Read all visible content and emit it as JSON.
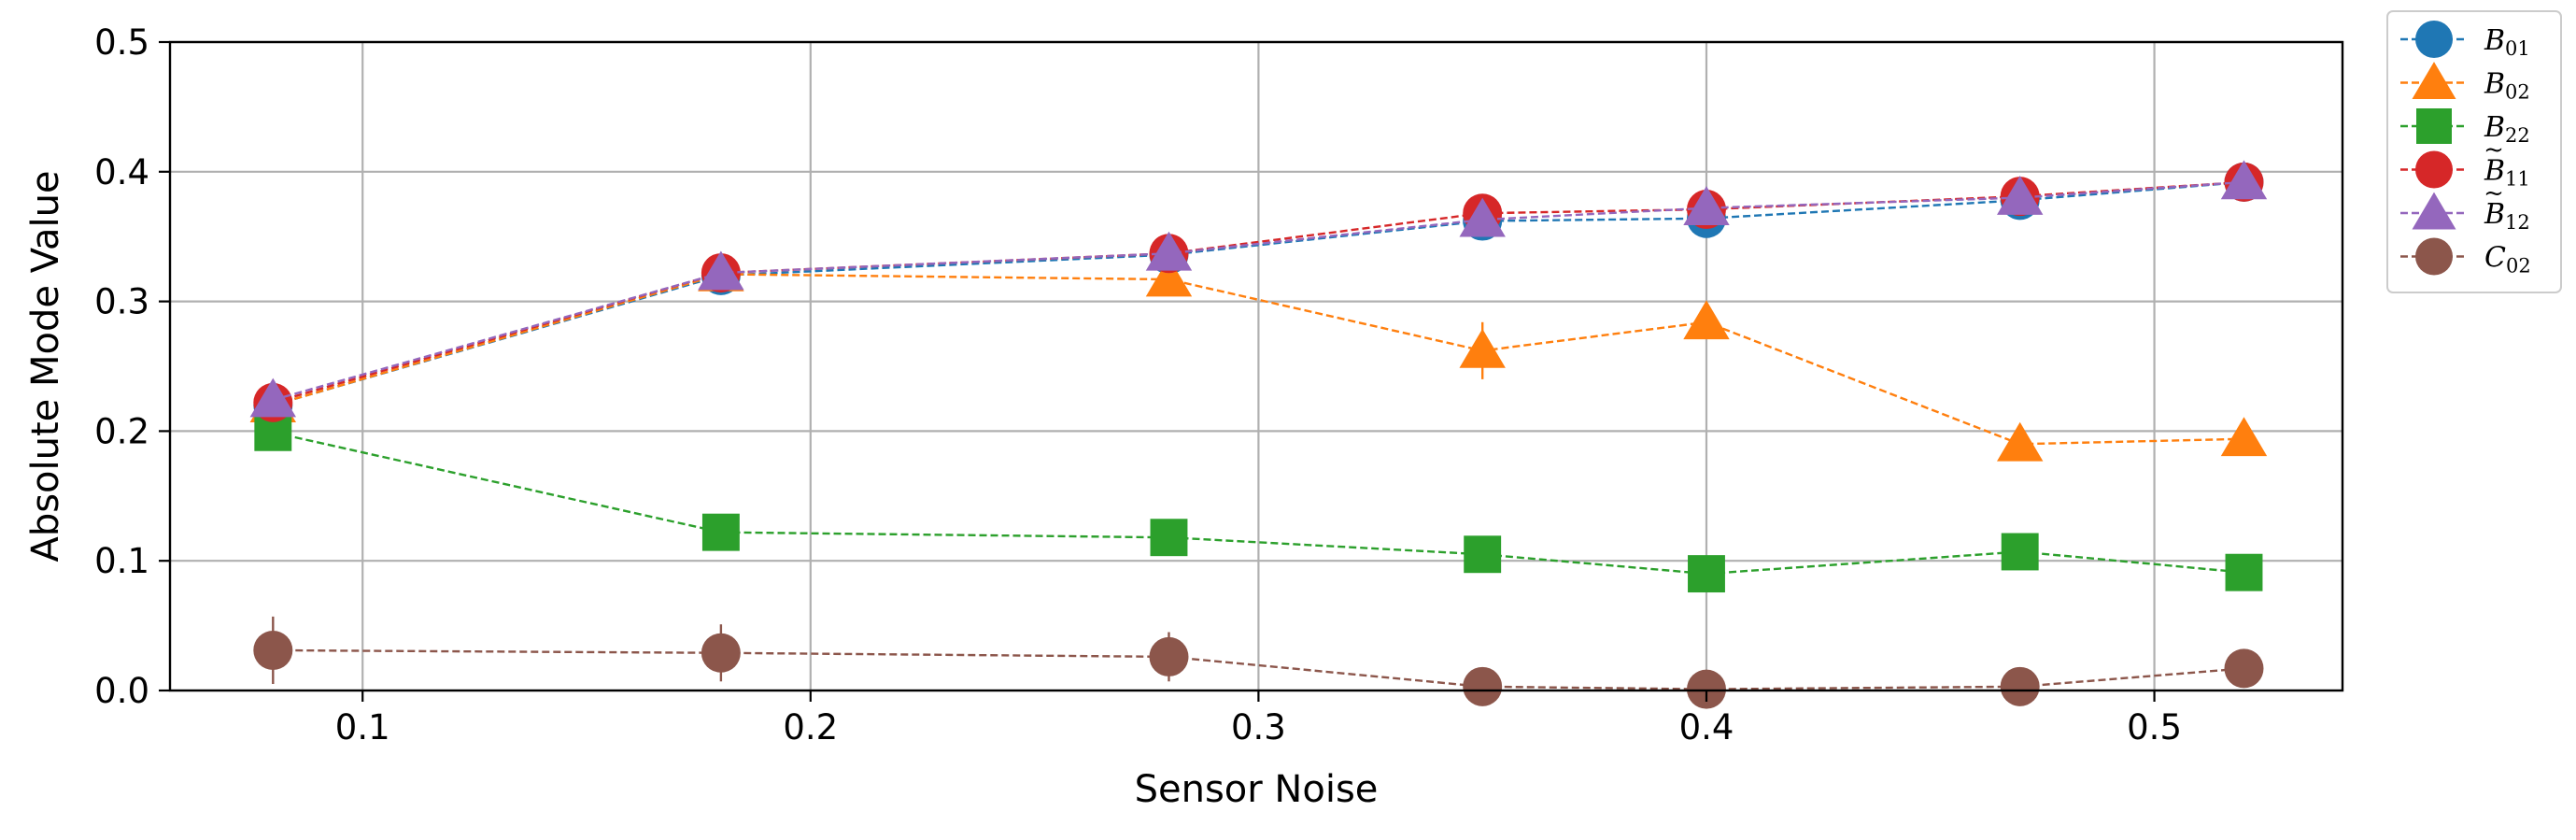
{
  "chart_data": {
    "type": "line",
    "xlabel": "Sensor Noise",
    "ylabel": "Absolute Mode Value",
    "xlim": [
      0.057,
      0.542
    ],
    "ylim": [
      0.0,
      0.5
    ],
    "xticks": [
      0.1,
      0.2,
      0.3,
      0.4,
      0.5
    ],
    "xtick_labels": [
      "0.1",
      "0.2",
      "0.3",
      "0.4",
      "0.5"
    ],
    "yticks": [
      0.0,
      0.1,
      0.2,
      0.3,
      0.4,
      0.5
    ],
    "ytick_labels": [
      "0.0",
      "0.1",
      "0.2",
      "0.3",
      "0.4",
      "0.5"
    ],
    "grid": true,
    "legend_position": "outside-right-top",
    "x": [
      0.08,
      0.18,
      0.28,
      0.35,
      0.4,
      0.47,
      0.52
    ],
    "series": [
      {
        "name": "B01",
        "label_base": "B",
        "label_tilde": false,
        "label_sub": "01",
        "color": "#1f77b4",
        "marker": "circle",
        "values": [
          0.22,
          0.32,
          0.336,
          0.362,
          0.364,
          0.378,
          0.392
        ],
        "errors": [
          0,
          0,
          0,
          0,
          0,
          0,
          0
        ]
      },
      {
        "name": "B02",
        "label_base": "B",
        "label_tilde": false,
        "label_sub": "02",
        "color": "#ff7f0e",
        "marker": "triangle",
        "values": [
          0.22,
          0.321,
          0.317,
          0.262,
          0.284,
          0.19,
          0.194
        ],
        "errors": [
          0,
          0,
          0,
          0.022,
          0,
          0,
          0
        ]
      },
      {
        "name": "B22",
        "label_base": "B",
        "label_tilde": false,
        "label_sub": "22",
        "color": "#2ca02c",
        "marker": "square",
        "values": [
          0.199,
          0.122,
          0.118,
          0.105,
          0.09,
          0.107,
          0.091
        ],
        "errors": [
          0,
          0,
          0,
          0,
          0,
          0,
          0
        ]
      },
      {
        "name": "B̃11",
        "label_base": "B",
        "label_tilde": true,
        "label_sub": "11",
        "color": "#d62728",
        "marker": "circle",
        "values": [
          0.222,
          0.322,
          0.337,
          0.368,
          0.371,
          0.381,
          0.392
        ],
        "errors": [
          0,
          0,
          0,
          0,
          0,
          0,
          0
        ]
      },
      {
        "name": "B̃12",
        "label_base": "B",
        "label_tilde": true,
        "label_sub": "12",
        "color": "#9467bd",
        "marker": "triangle",
        "values": [
          0.224,
          0.322,
          0.337,
          0.363,
          0.372,
          0.38,
          0.392
        ],
        "errors": [
          0,
          0,
          0,
          0,
          0,
          0,
          0
        ]
      },
      {
        "name": "C02",
        "label_base": "C",
        "label_tilde": false,
        "label_sub": "02",
        "color": "#8c564b",
        "marker": "circle",
        "values": [
          0.031,
          0.029,
          0.026,
          0.003,
          0.001,
          0.003,
          0.017
        ],
        "errors": [
          0.026,
          0.022,
          0.019,
          0.01,
          0.01,
          0.01,
          0.01
        ]
      }
    ]
  }
}
